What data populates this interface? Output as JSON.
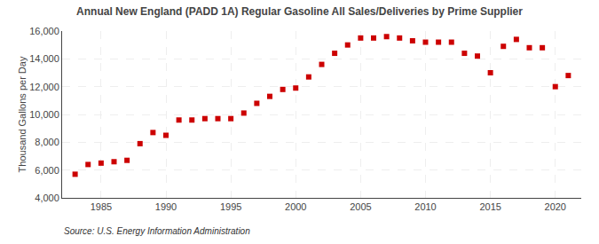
{
  "chart_data": {
    "type": "scatter",
    "title": "Annual New England (PADD 1A) Regular Gasoline All Sales/Deliveries by Prime Supplier",
    "y_label": "Thousand Gallons per Day",
    "annotations": [
      "Source: U.S. Energy Information Administration"
    ],
    "x": [
      1983,
      1984,
      1985,
      1986,
      1987,
      1988,
      1989,
      1990,
      1991,
      1992,
      1993,
      1994,
      1995,
      1996,
      1997,
      1998,
      1999,
      2000,
      2001,
      2002,
      2003,
      2004,
      2005,
      2006,
      2007,
      2008,
      2009,
      2010,
      2011,
      2012,
      2013,
      2014,
      2015,
      2016,
      2017,
      2018,
      2019,
      2020,
      2021
    ],
    "values": [
      5700,
      6400,
      6500,
      6600,
      6700,
      7900,
      8700,
      8500,
      9600,
      9600,
      9700,
      9700,
      9700,
      10100,
      10800,
      11300,
      11800,
      11900,
      12700,
      13600,
      14400,
      15000,
      15500,
      15500,
      15600,
      15500,
      15300,
      15200,
      15200,
      15200,
      14400,
      14200,
      13000,
      14900,
      15400,
      14800,
      14800,
      12000,
      12800
    ],
    "color": "#cc0000",
    "marker": "square",
    "xlim": [
      1982,
      2022
    ],
    "xticks": [
      1985,
      1990,
      1995,
      2000,
      2005,
      2010,
      2015,
      2020
    ],
    "ylim": [
      4000,
      16000
    ],
    "yticks": [
      {
        "value": 4000,
        "label": "4,000"
      },
      {
        "value": 6000,
        "label": "6,000"
      },
      {
        "value": 8000,
        "label": "8,000"
      },
      {
        "value": 10000,
        "label": "10,000"
      },
      {
        "value": 12000,
        "label": "12,000"
      },
      {
        "value": 14000,
        "label": "14,000"
      },
      {
        "value": 16000,
        "label": "16,000"
      }
    ],
    "grid": true
  }
}
